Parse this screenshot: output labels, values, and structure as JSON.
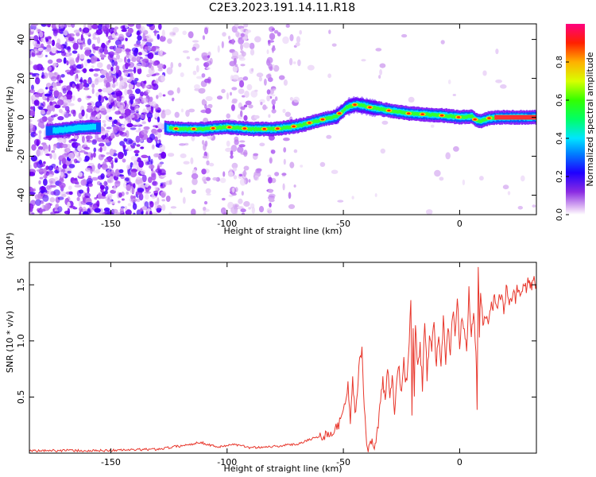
{
  "title": "C2E3.2023.191.14.11.R18",
  "chart_data": [
    {
      "type": "heatmap",
      "xlabel": "Height of straight line (km)",
      "ylabel": "Frequency (Hz)",
      "xlim": [
        -185,
        33
      ],
      "ylim": [
        -50,
        48
      ],
      "xticks": [
        -150,
        -100,
        -50,
        0
      ],
      "yticks": [
        -40,
        -20,
        0,
        20,
        40
      ],
      "colorbar": {
        "label": "Normalized spectral amplitude",
        "range": [
          0,
          1
        ],
        "ticks": [
          "0.0",
          "0.2",
          "0.4",
          "0.6",
          "0.8"
        ],
        "colormap": "rainbow"
      },
      "ridge_x": [
        -178,
        -172,
        -165,
        -160,
        -155,
        -127,
        -120,
        -110,
        -100,
        -90,
        -80,
        -73,
        -68,
        -62,
        -57,
        -53,
        -49,
        -45,
        -42,
        -38,
        -33,
        -28,
        -22,
        -15,
        -8,
        0,
        5,
        7,
        9,
        12,
        18,
        25,
        33
      ],
      "ridge_y": [
        -7,
        -6.5,
        -5.5,
        -5,
        -5,
        -5.5,
        -6,
        -6,
        -5,
        -6,
        -6,
        -5,
        -4,
        -2,
        -0.5,
        0.5,
        5,
        6.5,
        6,
        5,
        4,
        3,
        2,
        1.5,
        1,
        0,
        0.5,
        -1.5,
        -2,
        -0.5,
        0,
        0,
        0
      ]
    },
    {
      "type": "line",
      "xlabel": "Height of straight line (km)",
      "ylabel": "SNR (10 * v/v)",
      "yscale_note": "(x10⁴)",
      "xlim": [
        -185,
        33
      ],
      "ylim": [
        0,
        17000
      ],
      "xticks": [
        -150,
        -100,
        -50,
        0
      ],
      "yticks": [
        5000,
        10000,
        15000
      ],
      "ytick_labels": [
        "0.5",
        "1.0",
        "1.5"
      ],
      "series": [
        {
          "color": "#e8372c",
          "x": [
            -185,
            -170,
            -160,
            -150,
            -140,
            -130,
            -125,
            -115,
            -112,
            -108,
            -103,
            -98,
            -90,
            -80,
            -70,
            -65,
            -60,
            -55,
            -52,
            -50,
            -48,
            -47,
            -46,
            -45,
            -44,
            -43,
            -42,
            -41,
            -40,
            -39,
            -38,
            -37,
            -36,
            -35,
            -34,
            -33,
            -32,
            -31,
            -30,
            -29,
            -28,
            -27,
            -26,
            -25,
            -24,
            -23,
            -22,
            -21,
            -20.5,
            -20,
            -19.5,
            -19,
            -18,
            -17,
            -16,
            -15,
            -14,
            -13,
            -12,
            -11,
            -10,
            -9,
            -8,
            -7,
            -6,
            -5,
            -4,
            -3,
            -2,
            -1,
            0,
            1,
            2,
            3,
            4,
            5,
            6,
            7,
            7.5,
            8,
            8.5,
            9,
            10,
            11,
            12,
            13,
            14,
            15,
            16,
            17,
            18,
            19,
            20,
            21,
            22,
            23,
            24,
            25,
            26,
            27,
            28,
            29,
            30,
            31,
            32,
            33
          ],
          "y": [
            200,
            250,
            200,
            250,
            300,
            350,
            500,
            800,
            1000,
            750,
            550,
            800,
            500,
            600,
            800,
            1200,
            1500,
            1800,
            2500,
            4000,
            6000,
            3000,
            6500,
            3500,
            5000,
            8500,
            9200,
            4000,
            1000,
            300,
            1200,
            500,
            900,
            2500,
            5000,
            6500,
            4500,
            7500,
            5500,
            7000,
            4000,
            6500,
            7500,
            5500,
            8000,
            6000,
            8500,
            13800,
            4000,
            10500,
            5500,
            11000,
            7500,
            9500,
            6000,
            11500,
            7000,
            10000,
            9500,
            12000,
            7500,
            11000,
            7500,
            12500,
            8500,
            11500,
            9000,
            12500,
            11000,
            13500,
            9500,
            12500,
            11000,
            9500,
            14500,
            10500,
            12500,
            9500,
            4500,
            16900,
            11000,
            14500,
            12000,
            12500,
            11500,
            12500,
            13000,
            14000,
            12500,
            13500,
            14000,
            13000,
            14500,
            13500,
            14000,
            14500,
            14000,
            14800,
            14200,
            14500,
            14700,
            15000,
            14900,
            14600,
            15200,
            15000
          ]
        }
      ]
    }
  ]
}
